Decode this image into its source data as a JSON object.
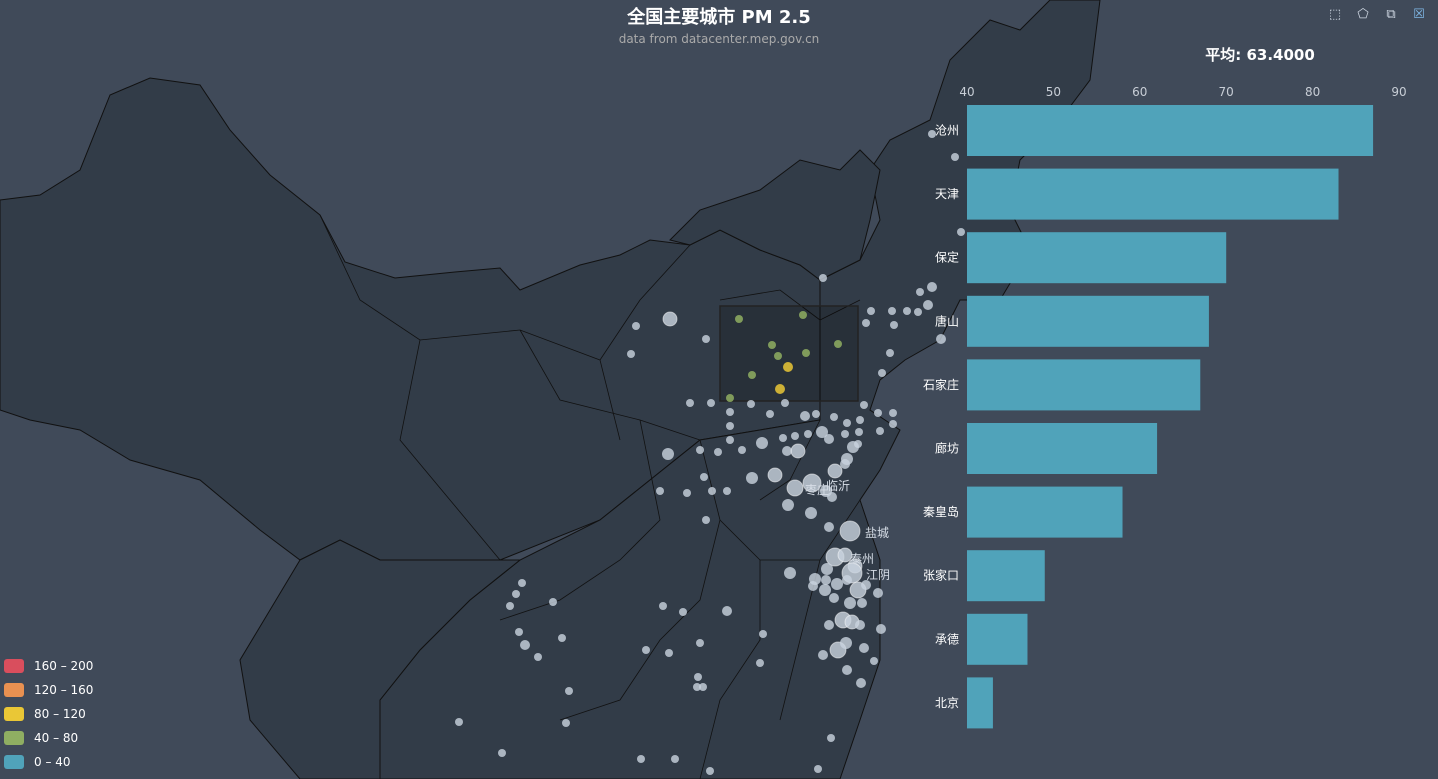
{
  "title": "全国主要城市 PM 2.5",
  "subtitle": "data from datacenter.mep.gov.cn",
  "average_label": "平均: 63.4000",
  "toolbox": [
    {
      "name": "brush-rect-icon",
      "glyph": "⬚",
      "active": false
    },
    {
      "name": "brush-polygon-icon",
      "glyph": "⬠",
      "active": false
    },
    {
      "name": "brush-keep-icon",
      "glyph": "⧉",
      "active": false
    },
    {
      "name": "brush-clear-icon",
      "glyph": "☒",
      "active": true
    }
  ],
  "legend": [
    {
      "label": "160 – 200",
      "color": "#d94e5d"
    },
    {
      "label": "120 – 160",
      "color": "#eac736"
    },
    {
      "label": "80 – 120",
      "color": "#eac736"
    },
    {
      "label": "40 – 80",
      "color": "#8fae62"
    },
    {
      "label": "0 – 40",
      "color": "#50a3ba"
    }
  ],
  "colors": {
    "background": "#404a59",
    "land": "#323c48",
    "border": "#111111",
    "bar": "#50a3ba",
    "point_dim": "#c9d3df",
    "point_green": "#8fae62",
    "point_yellow": "#eac736"
  },
  "chart_data": {
    "type": "bar",
    "orientation": "horizontal",
    "categories": [
      "沧州",
      "天津",
      "保定",
      "唐山",
      "石家庄",
      "廊坊",
      "秦皇岛",
      "张家口",
      "承德",
      "北京"
    ],
    "values": [
      87,
      83,
      70,
      68,
      67,
      62,
      58,
      49,
      47,
      43
    ],
    "xlim": [
      40,
      90
    ],
    "ticks": [
      40,
      50,
      60,
      70,
      80,
      90
    ],
    "grid": false
  },
  "map_labels": [
    "临沂",
    "枣庄",
    "盐城",
    "泰州",
    "江阴"
  ]
}
